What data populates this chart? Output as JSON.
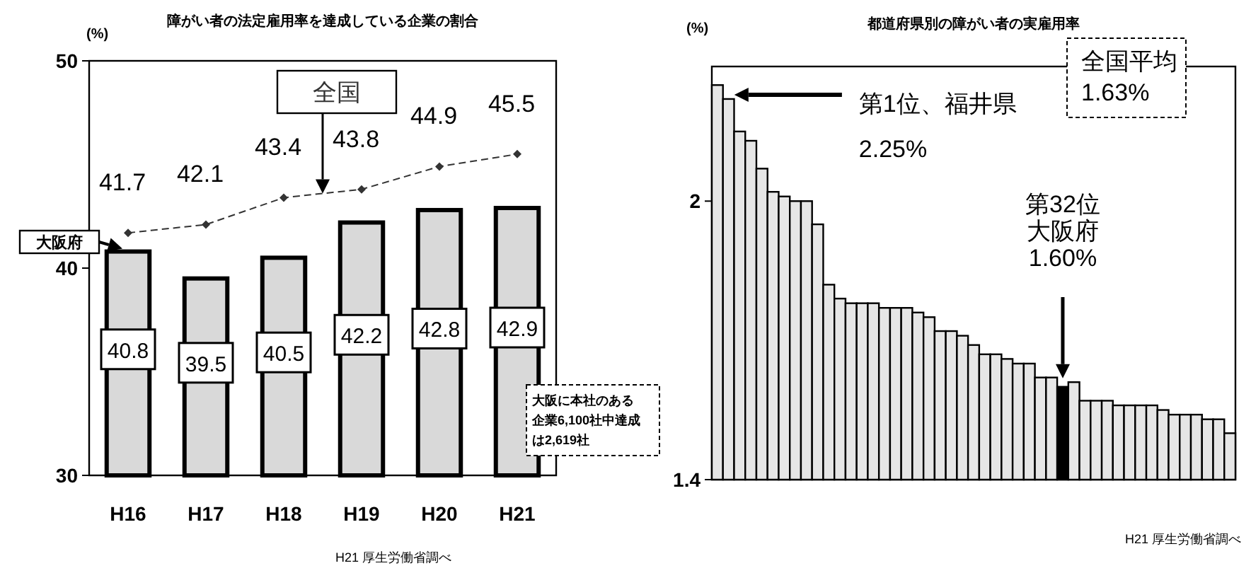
{
  "chart_data": [
    {
      "type": "bar",
      "title": "障がい者の法定雇用率を達成している企業の割合",
      "ylabel": "(%)",
      "categories": [
        "H16",
        "H17",
        "H18",
        "H19",
        "H20",
        "H21"
      ],
      "ylim": [
        30,
        50
      ],
      "yticks": [
        30,
        40,
        50
      ],
      "data_labels": true,
      "grid": false,
      "legend": "left",
      "series": [
        {
          "name": "大阪府",
          "type": "bar",
          "color": "#d9d9d9",
          "values": [
            40.8,
            39.5,
            40.5,
            42.2,
            42.8,
            42.9
          ]
        },
        {
          "name": "全国",
          "type": "line",
          "color": "#333333",
          "marker": "diamond",
          "line_style": "dashed",
          "values": [
            41.7,
            42.1,
            43.4,
            43.8,
            44.9,
            45.5
          ]
        }
      ],
      "annotations": [
        "大阪に本社のある企業6,100社中達成は2,619社",
        "H21 厚生労働省調べ"
      ]
    },
    {
      "type": "bar",
      "title": "都道府県別の障がい者の実雇用率",
      "ylabel": "(%)",
      "categories": [
        null,
        null,
        null,
        null,
        null,
        null,
        null,
        null,
        null,
        null,
        null,
        null,
        null,
        null,
        null,
        null,
        null,
        null,
        null,
        null,
        null,
        null,
        null,
        null,
        null,
        null,
        null,
        null,
        null,
        null,
        null,
        null,
        null,
        null,
        null,
        null,
        null,
        null,
        null,
        null,
        null,
        null,
        null,
        null,
        null,
        null,
        null
      ],
      "ylim": [
        1.4,
        2.29
      ],
      "yticks": [
        1.4,
        2
      ],
      "grid": false,
      "legend": false,
      "values": [
        2.25,
        2.22,
        2.15,
        2.13,
        2.07,
        2.02,
        2.01,
        2.0,
        2.0,
        1.95,
        1.82,
        1.79,
        1.78,
        1.78,
        1.78,
        1.77,
        1.77,
        1.77,
        1.76,
        1.75,
        1.72,
        1.72,
        1.71,
        1.69,
        1.67,
        1.67,
        1.66,
        1.65,
        1.65,
        1.62,
        1.62,
        1.6,
        1.61,
        1.57,
        1.57,
        1.57,
        1.56,
        1.56,
        1.56,
        1.56,
        1.55,
        1.54,
        1.54,
        1.54,
        1.53,
        1.53,
        1.5
      ],
      "colors": [
        "#e6e6e6",
        "#e6e6e6",
        "#e6e6e6",
        "#e6e6e6",
        "#e6e6e6",
        "#e6e6e6",
        "#e6e6e6",
        "#e6e6e6",
        "#e6e6e6",
        "#e6e6e6",
        "#e6e6e6",
        "#e6e6e6",
        "#e6e6e6",
        "#e6e6e6",
        "#e6e6e6",
        "#e6e6e6",
        "#e6e6e6",
        "#e6e6e6",
        "#e6e6e6",
        "#e6e6e6",
        "#e6e6e6",
        "#e6e6e6",
        "#e6e6e6",
        "#e6e6e6",
        "#e6e6e6",
        "#e6e6e6",
        "#e6e6e6",
        "#e6e6e6",
        "#e6e6e6",
        "#e6e6e6",
        "#e6e6e6",
        "#000000",
        "#e6e6e6",
        "#e6e6e6",
        "#e6e6e6",
        "#e6e6e6",
        "#e6e6e6",
        "#e6e6e6",
        "#e6e6e6",
        "#e6e6e6",
        "#e6e6e6",
        "#e6e6e6",
        "#e6e6e6",
        "#e6e6e6",
        "#e6e6e6",
        "#e6e6e6",
        "#e6e6e6"
      ],
      "annotations": [
        "第1位、福井県2.25%",
        "第32位大阪府1.60%",
        "全国平均1.63%",
        "H21 厚生労働省調べ"
      ]
    }
  ]
}
